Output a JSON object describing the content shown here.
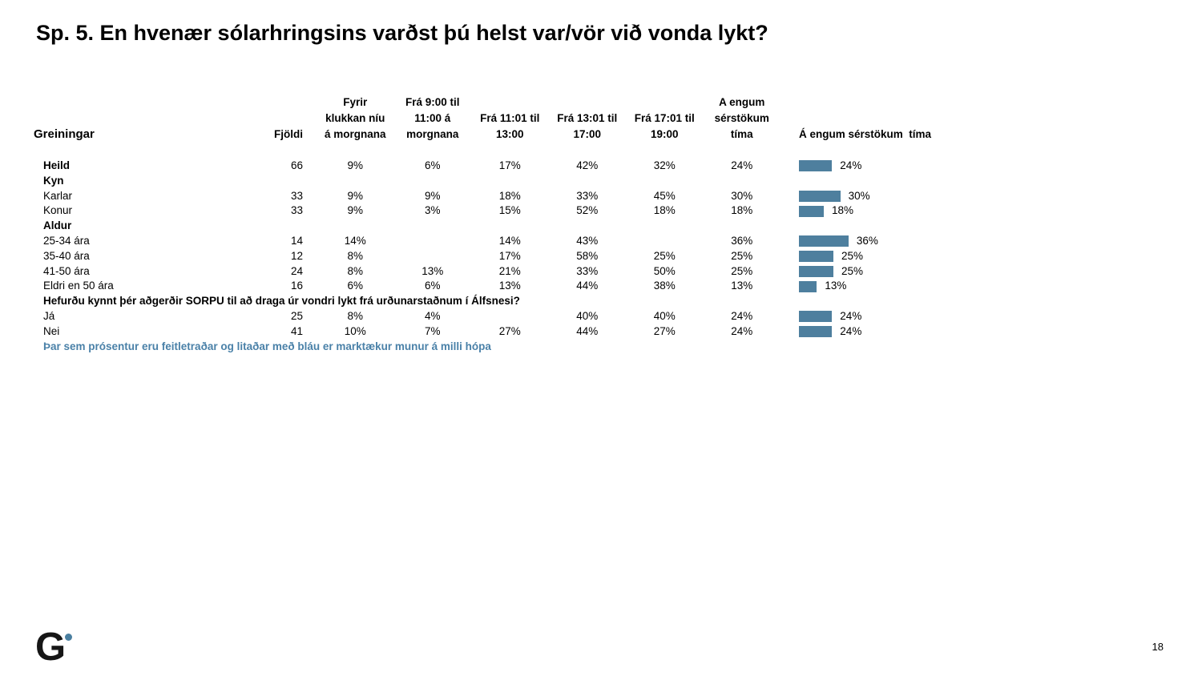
{
  "slide": {
    "title": "Sp. 5. En hvenær sólarhringsins varðst þú helst var/vör við vonda lykt?",
    "footnote": "Þar sem prósentur eru feitletraðar og litaðar með bláu er marktækur munur á milli hópa",
    "page_number": "18",
    "logo_letter": "G"
  },
  "colors": {
    "bar": "#4e7f9e",
    "note": "#4a81a8",
    "dot": "#4a7fa0"
  },
  "table": {
    "row_header_label": "Greiningar",
    "count_header": "Fjöldi",
    "time_headers": [
      "Fyrir\nklukkan níu\ná morgnana",
      "Frá 9:00 til\n11:00 á\nmorgnana",
      "Frá 11:01 til\n13:00",
      "Frá 13:01 til\n17:00",
      "Frá 17:01 til\n19:00",
      "A engum\nsérstökum\ntíma"
    ],
    "chart_header": "Á engum sérstökum  tíma",
    "rows": [
      {
        "type": "data",
        "bold": true,
        "label": "Heild",
        "count": "66",
        "values": [
          "9%",
          "6%",
          "17%",
          "42%",
          "32%",
          "24%"
        ],
        "bar": 24,
        "bar_label": "24%"
      },
      {
        "type": "section",
        "label": "Kyn"
      },
      {
        "type": "data",
        "bold": false,
        "label": "Karlar",
        "count": "33",
        "values": [
          "9%",
          "9%",
          "18%",
          "33%",
          "45%",
          "30%"
        ],
        "bar": 30,
        "bar_label": "30%"
      },
      {
        "type": "data",
        "bold": false,
        "label": "Konur",
        "count": "33",
        "values": [
          "9%",
          "3%",
          "15%",
          "52%",
          "18%",
          "18%"
        ],
        "bar": 18,
        "bar_label": "18%"
      },
      {
        "type": "section",
        "label": "Aldur"
      },
      {
        "type": "data",
        "bold": false,
        "label": "25-34 ára",
        "count": "14",
        "values": [
          "14%",
          "",
          "14%",
          "43%",
          "",
          "36%"
        ],
        "bar": 36,
        "bar_label": "36%"
      },
      {
        "type": "data",
        "bold": false,
        "label": "35-40 ára",
        "count": "12",
        "values": [
          "8%",
          "",
          "17%",
          "58%",
          "25%",
          "25%"
        ],
        "bar": 25,
        "bar_label": "25%"
      },
      {
        "type": "data",
        "bold": false,
        "label": "41-50 ára",
        "count": "24",
        "values": [
          "8%",
          "13%",
          "21%",
          "33%",
          "50%",
          "25%"
        ],
        "bar": 25,
        "bar_label": "25%"
      },
      {
        "type": "data",
        "bold": false,
        "label": "Eldri en 50 ára",
        "count": "16",
        "values": [
          "6%",
          "6%",
          "13%",
          "44%",
          "38%",
          "13%"
        ],
        "bar": 13,
        "bar_label": "13%"
      },
      {
        "type": "section",
        "label": "Hefurðu kynnt þér aðgerðir SORPU til að draga úr vondri lykt frá urðunarstaðnum í Álfsnesi?"
      },
      {
        "type": "data",
        "bold": false,
        "label": "Já",
        "count": "25",
        "values": [
          "8%",
          "4%",
          "",
          "40%",
          "40%",
          "24%"
        ],
        "bar": 24,
        "bar_label": "24%"
      },
      {
        "type": "data",
        "bold": false,
        "label": "Nei",
        "count": "41",
        "values": [
          "10%",
          "7%",
          "27%",
          "44%",
          "27%",
          "24%"
        ],
        "bar": 24,
        "bar_label": "24%"
      }
    ]
  },
  "chart_data": [
    {
      "type": "table",
      "title": "Sp. 5. En hvenær sólarhringsins varðst þú helst var/vör við vonda lykt?",
      "columns": [
        "Greiningar",
        "Fjöldi",
        "Fyrir klukkan níu á morgnana",
        "Frá 9:00 til 11:00 á morgnana",
        "Frá 11:01 til 13:00",
        "Frá 13:01 til 17:00",
        "Frá 17:01 til 19:00",
        "A engum sérstökum tíma"
      ],
      "rows": [
        [
          "Heild",
          "66",
          "9%",
          "6%",
          "17%",
          "42%",
          "32%",
          "24%"
        ],
        [
          "Kyn",
          "",
          "",
          "",
          "",
          "",
          "",
          ""
        ],
        [
          "Karlar",
          "33",
          "9%",
          "9%",
          "18%",
          "33%",
          "45%",
          "30%"
        ],
        [
          "Konur",
          "33",
          "9%",
          "3%",
          "15%",
          "52%",
          "18%",
          "18%"
        ],
        [
          "Aldur",
          "",
          "",
          "",
          "",
          "",
          "",
          ""
        ],
        [
          "25-34 ára",
          "14",
          "14%",
          "",
          "14%",
          "43%",
          "",
          "36%"
        ],
        [
          "35-40 ára",
          "12",
          "8%",
          "",
          "17%",
          "58%",
          "25%",
          "25%"
        ],
        [
          "41-50 ára",
          "24",
          "8%",
          "13%",
          "21%",
          "33%",
          "50%",
          "25%"
        ],
        [
          "Eldri en 50 ára",
          "16",
          "6%",
          "6%",
          "13%",
          "44%",
          "38%",
          "13%"
        ],
        [
          "Hefurðu kynnt þér aðgerðir SORPU til að draga úr vondri lykt frá urðunarstaðnum í Álfsnesi?",
          "",
          "",
          "",
          "",
          "",
          "",
          ""
        ],
        [
          "Já",
          "25",
          "8%",
          "4%",
          "",
          "40%",
          "40%",
          "24%"
        ],
        [
          "Nei",
          "41",
          "10%",
          "7%",
          "27%",
          "44%",
          "27%",
          "24%"
        ]
      ]
    },
    {
      "type": "bar",
      "orientation": "horizontal",
      "title": "Á engum sérstökum tíma",
      "categories": [
        "Heild",
        "Karlar",
        "Konur",
        "25-34 ára",
        "35-40 ára",
        "41-50 ára",
        "Eldri en 50 ára",
        "Já",
        "Nei"
      ],
      "values": [
        24,
        30,
        18,
        36,
        25,
        25,
        13,
        24,
        24
      ],
      "data_labels": [
        "24%",
        "30%",
        "18%",
        "36%",
        "25%",
        "25%",
        "13%",
        "24%",
        "24%"
      ],
      "unit": "%",
      "xlim": [
        0,
        40
      ],
      "grid": false,
      "legend": "none",
      "bar_color": "#4e7f9e"
    }
  ]
}
